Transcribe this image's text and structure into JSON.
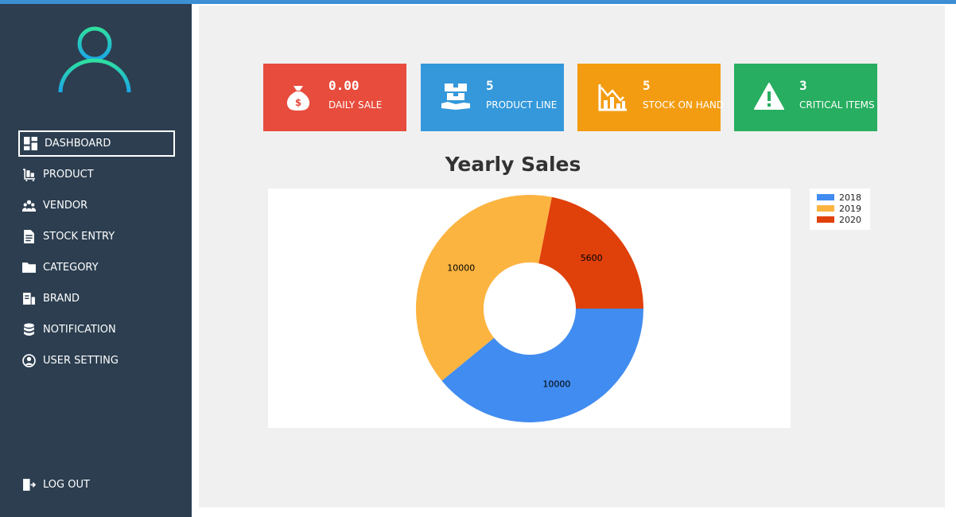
{
  "sidebar": {
    "items": [
      {
        "label": "DASHBOARD"
      },
      {
        "label": "PRODUCT"
      },
      {
        "label": "VENDOR"
      },
      {
        "label": "STOCK ENTRY"
      },
      {
        "label": "CATEGORY"
      },
      {
        "label": "BRAND"
      },
      {
        "label": "NOTIFICATION"
      },
      {
        "label": "USER SETTING"
      }
    ],
    "logout_label": "LOG OUT"
  },
  "cards": [
    {
      "value": "0.00",
      "label": "DAILY SALE",
      "color": "#e74c3c",
      "icon": "money-bag-icon"
    },
    {
      "value": "5",
      "label": "PRODUCT LINE",
      "color": "#3498db",
      "icon": "product-boxes-icon"
    },
    {
      "value": "5",
      "label": "STOCK ON HAND",
      "color": "#f39c12",
      "icon": "stock-chart-icon"
    },
    {
      "value": "3",
      "label": "CRITICAL ITEMS",
      "color": "#27ae60",
      "icon": "warning-icon"
    }
  ],
  "chart_data": {
    "type": "pie",
    "title": "Yearly Sales",
    "categories": [
      "2018",
      "2019",
      "2020"
    ],
    "values": [
      10000,
      10000,
      5600
    ],
    "colors": [
      "#418cf0",
      "#fcb441",
      "#e0400a"
    ],
    "donut": true,
    "legend": "top-right"
  }
}
